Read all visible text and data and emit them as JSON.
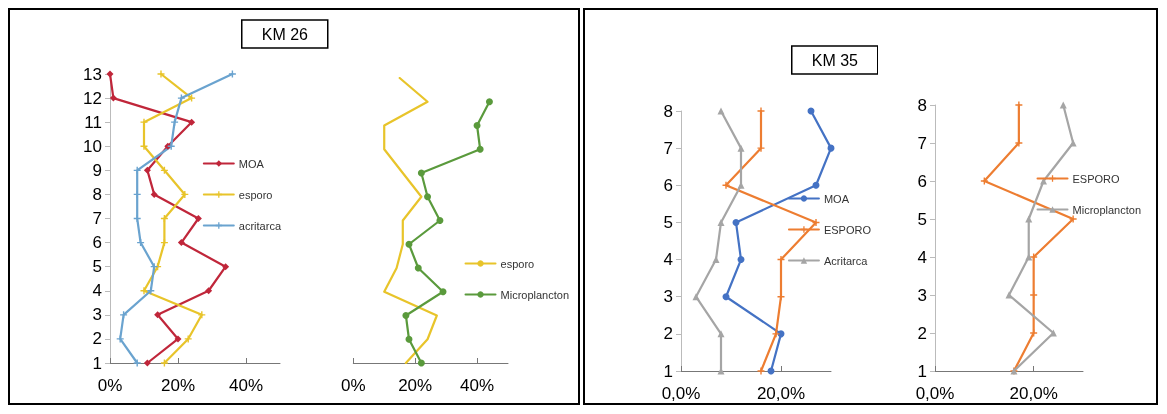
{
  "chart_data": [
    {
      "type": "line",
      "title": "KM 26",
      "xlim": [
        0,
        50
      ],
      "xticks": [
        {
          "value": 0,
          "label": "0%"
        },
        {
          "value": 20,
          "label": "20%"
        },
        {
          "value": 40,
          "label": "40%"
        }
      ],
      "ylim": [
        1,
        13
      ],
      "yticks": [
        1,
        2,
        3,
        4,
        5,
        6,
        7,
        8,
        9,
        10,
        11,
        12,
        13
      ],
      "legend": "right",
      "series": [
        {
          "name": "MOA",
          "color": "#c0263a",
          "marker": "diamond",
          "x": [
            11,
            20,
            14,
            29,
            34,
            21,
            26,
            13,
            11,
            17,
            24,
            1,
            0
          ],
          "values": [
            1,
            2,
            3,
            4,
            5,
            6,
            7,
            8,
            9,
            10,
            11,
            12,
            13
          ]
        },
        {
          "name": "esporo",
          "color": "#e8c42a",
          "marker": "cross",
          "x": [
            16,
            23,
            27,
            10,
            14,
            16,
            16,
            22,
            16,
            10,
            10,
            24,
            15
          ],
          "values": [
            1,
            2,
            3,
            4,
            5,
            6,
            7,
            8,
            9,
            10,
            11,
            12,
            13
          ]
        },
        {
          "name": "acritarca",
          "color": "#6aa3cf",
          "marker": "cross",
          "x": [
            8,
            3,
            4,
            12,
            13,
            9,
            8,
            8,
            8,
            18,
            19,
            21,
            36
          ],
          "values": [
            1,
            2,
            3,
            4,
            5,
            6,
            7,
            8,
            9,
            10,
            11,
            12,
            13
          ]
        }
      ]
    },
    {
      "type": "line",
      "orientation": "horizontal",
      "categories": [
        null,
        null,
        null,
        null,
        null,
        null,
        null,
        null,
        null,
        null,
        null,
        null,
        null
      ],
      "xlim": [
        0,
        50
      ],
      "xticks": [
        {
          "value": 0,
          "label": "0%"
        },
        {
          "value": 20,
          "label": "20%"
        },
        {
          "value": 40,
          "label": "40%"
        }
      ],
      "tick_labels": "x",
      "legend": "right",
      "series": [
        {
          "name": "esporo",
          "color": "#e8c42a",
          "marker": "none",
          "values": [
            15,
            24,
            10,
            10,
            16,
            22,
            16,
            16,
            14,
            10,
            27,
            24,
            17
          ]
        },
        {
          "name": "Microplancton",
          "color": "#5a9a3c",
          "marker": "circle",
          "values": [
            null,
            44,
            40,
            41,
            22,
            24,
            28,
            18,
            21,
            29,
            17,
            18,
            22
          ]
        }
      ]
    },
    {
      "type": "line",
      "title": "KM 35",
      "xlim": [
        0,
        30
      ],
      "xticks": [
        {
          "value": 0,
          "label": "0,0%"
        },
        {
          "value": 20,
          "label": "20,0%"
        }
      ],
      "ylim": [
        1,
        8
      ],
      "yticks": [
        1,
        2,
        3,
        4,
        5,
        6,
        7,
        8
      ],
      "legend": "right",
      "series": [
        {
          "name": "MOA",
          "color": "#4472c4",
          "marker": "circle",
          "x": [
            18,
            20,
            9,
            12,
            11,
            27,
            30,
            26
          ],
          "values": [
            1,
            2,
            3,
            4,
            5,
            6,
            7,
            8
          ]
        },
        {
          "name": "ESPORO",
          "color": "#ed7d31",
          "marker": "cross",
          "x": [
            16,
            19,
            20,
            20,
            27,
            9,
            16,
            16
          ],
          "values": [
            1,
            2,
            3,
            4,
            5,
            6,
            7,
            8
          ]
        },
        {
          "name": "Acritarca",
          "color": "#a5a5a5",
          "marker": "triangle",
          "x": [
            8,
            8,
            3,
            7,
            8,
            12,
            12,
            8
          ],
          "values": [
            1,
            2,
            3,
            4,
            5,
            6,
            7,
            8
          ]
        }
      ]
    },
    {
      "type": "line",
      "xlim": [
        0,
        30
      ],
      "xticks": [
        {
          "value": 0,
          "label": "0,0%"
        },
        {
          "value": 20,
          "label": "20,0%"
        }
      ],
      "ylim": [
        1,
        8
      ],
      "yticks": [
        1,
        2,
        3,
        4,
        5,
        6,
        7,
        8
      ],
      "legend": "right",
      "series": [
        {
          "name": "ESPORO",
          "color": "#ed7d31",
          "marker": "cross",
          "x": [
            16,
            20,
            20,
            20,
            28,
            10,
            17,
            17
          ],
          "values": [
            1,
            2,
            3,
            4,
            5,
            6,
            7,
            8
          ]
        },
        {
          "name": "Microplancton",
          "color": "#a5a5a5",
          "marker": "triangle",
          "x": [
            16,
            24,
            15,
            19,
            19,
            22,
            28,
            26
          ],
          "values": [
            1,
            2,
            3,
            4,
            5,
            6,
            7,
            8
          ]
        }
      ]
    }
  ]
}
